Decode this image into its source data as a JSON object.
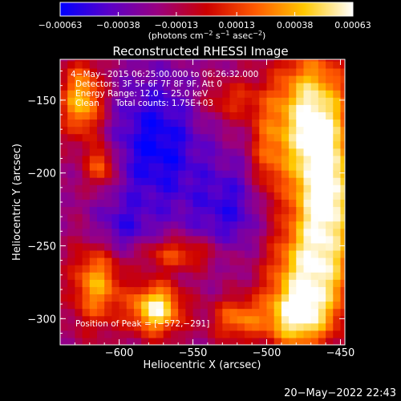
{
  "chart_data": {
    "type": "heatmap",
    "title": "Reconstructed RHESSI Image",
    "xlabel": "Heliocentric X (arcsec)",
    "ylabel": "Heliocentric Y (arcsec)",
    "xlim": [
      -640,
      -447
    ],
    "ylim": [
      -318,
      -122
    ],
    "x_ticks": [
      -600,
      -550,
      -500,
      -450
    ],
    "x_tick_labels": [
      "−600",
      "−550",
      "−500",
      "−450"
    ],
    "y_ticks": [
      -150,
      -200,
      -250,
      -300
    ],
    "y_tick_labels": [
      "−150",
      "−200",
      "−250",
      "−300"
    ],
    "colorbar": {
      "range": [
        -0.00063,
        0.00063
      ],
      "ticks": [
        -0.00063,
        -0.00038,
        -0.00013,
        0.00013,
        0.00038,
        0.00063
      ],
      "tick_labels": [
        "−0.00063",
        "−0.00038",
        "−0.00013",
        "0.00013",
        "0.00038",
        "0.00063"
      ],
      "unit_parts": [
        "(photons cm",
        "−2",
        " s",
        "−1",
        " asec",
        "−2",
        ")"
      ],
      "colors": [
        "#0000ff",
        "#5a00c8",
        "#9a0080",
        "#cc0000",
        "#ff5a00",
        "#ffc800",
        "#ffffff"
      ]
    },
    "annotations": [
      "4−May−2015 06:25:00.000 to 06:26:32.000",
      "Detectors: 3F 5F 6F 7F 8F 9F, Att 0",
      "Energy Range: 12.0 − 25.0 keV",
      "Clean",
      "Total counts: 1.75E+03",
      "Position of Peak = [−572,−291]"
    ],
    "peak": [
      -572,
      -291
    ],
    "sources": [
      {
        "x": -470,
        "y": -160,
        "sx": 18,
        "sy": 30,
        "amp": 1.0
      },
      {
        "x": -460,
        "y": -215,
        "sx": 16,
        "sy": 28,
        "amp": 0.95
      },
      {
        "x": -470,
        "y": -270,
        "sx": 20,
        "sy": 25,
        "amp": 0.9
      },
      {
        "x": -480,
        "y": -300,
        "sx": 15,
        "sy": 14,
        "amp": 0.75
      },
      {
        "x": -625,
        "y": -150,
        "sx": 10,
        "sy": 18,
        "amp": 0.8
      },
      {
        "x": -612,
        "y": -195,
        "sx": 7,
        "sy": 10,
        "amp": 0.6
      },
      {
        "x": -575,
        "y": -293,
        "sx": 12,
        "sy": 12,
        "amp": 1.0
      },
      {
        "x": -615,
        "y": -275,
        "sx": 12,
        "sy": 20,
        "amp": 0.7
      },
      {
        "x": -560,
        "y": -255,
        "sx": 20,
        "sy": 8,
        "amp": 0.5
      },
      {
        "x": -520,
        "y": -300,
        "sx": 12,
        "sy": 10,
        "amp": 0.55
      },
      {
        "x": -525,
        "y": -150,
        "sx": 15,
        "sy": 10,
        "amp": 0.35
      },
      {
        "x": -500,
        "y": -190,
        "sx": 8,
        "sy": 25,
        "amp": 0.4
      }
    ],
    "negative_regions": [
      {
        "x": -575,
        "y": -180,
        "sx": 22,
        "sy": 35,
        "amp": 0.55
      },
      {
        "x": -525,
        "y": -225,
        "sx": 20,
        "sy": 25,
        "amp": 0.4
      },
      {
        "x": -600,
        "y": -240,
        "sx": 15,
        "sy": 15,
        "amp": 0.35
      }
    ]
  },
  "footer": {
    "timestamp": "20−May−2022 22:43"
  }
}
